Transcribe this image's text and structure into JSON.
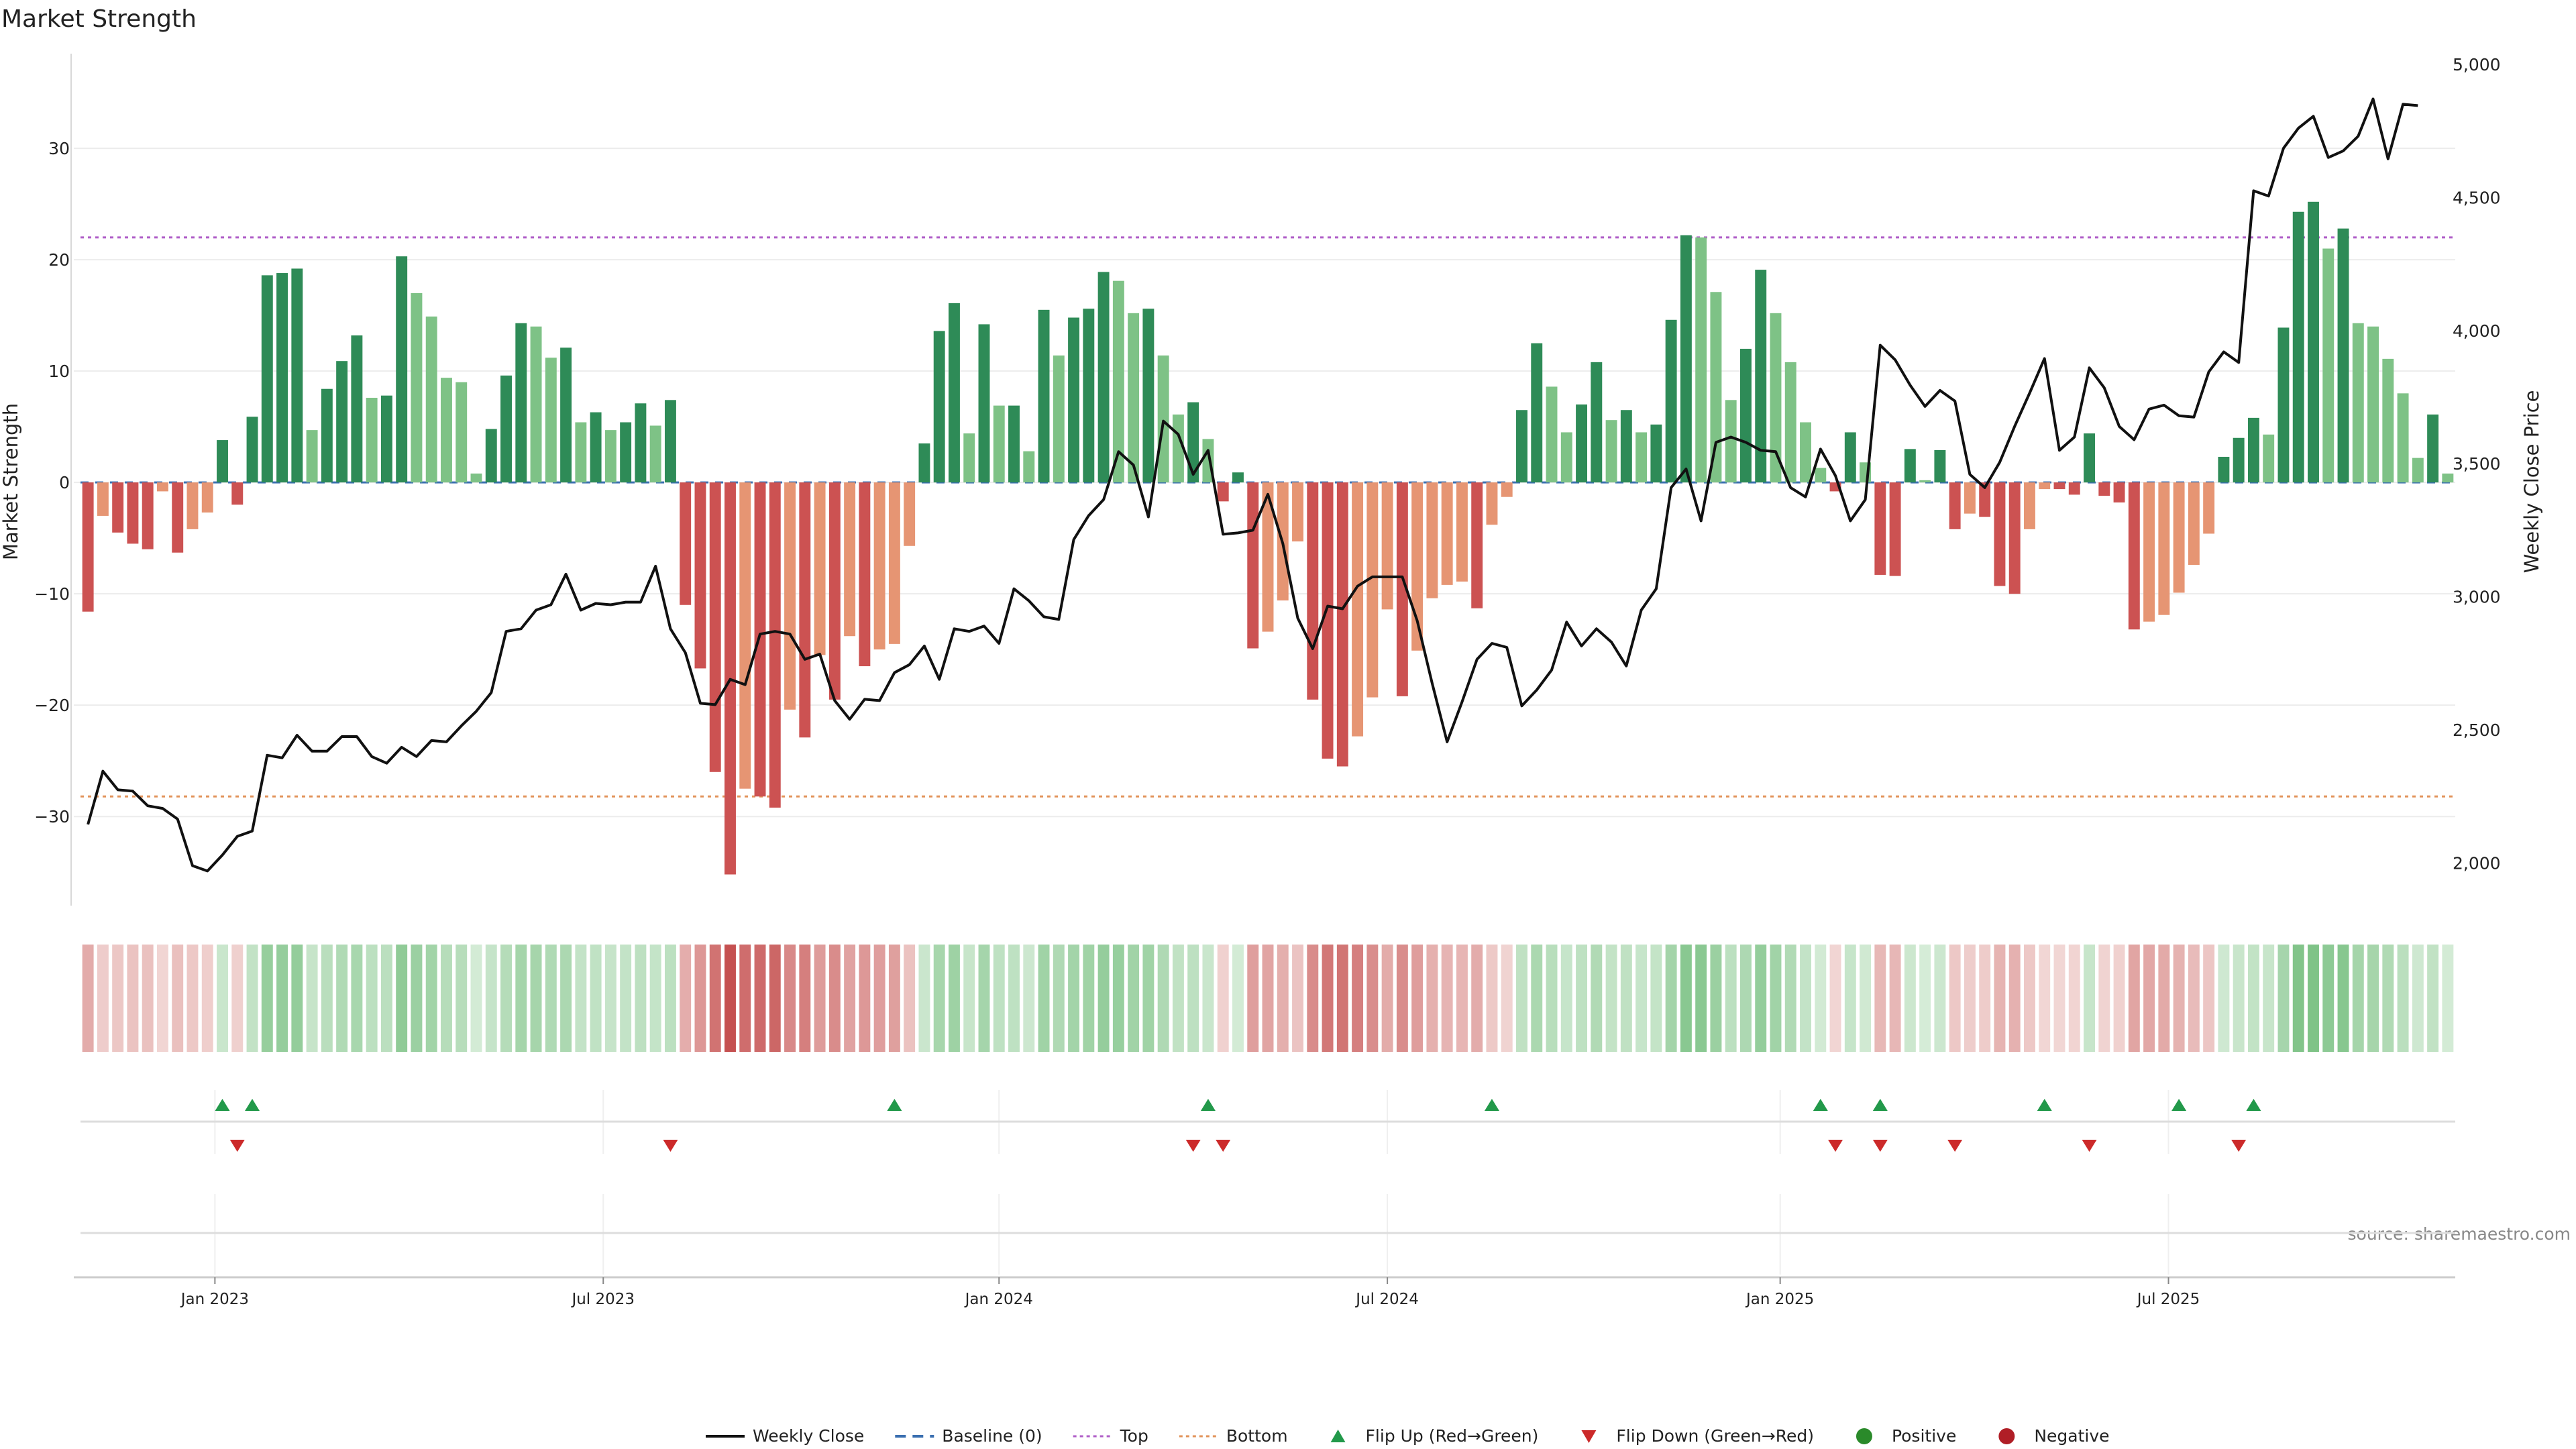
{
  "chart_data": {
    "type": "bar",
    "title": "Market Strength",
    "y_left_label": "Market Strength",
    "y_right_label": "Weekly Close Price",
    "y_left_ticks": [
      "−30",
      "−20",
      "−10",
      "0",
      "10",
      "20",
      "30"
    ],
    "y_left_tick_values": [
      -30,
      -20,
      -10,
      0,
      10,
      20,
      30
    ],
    "y_left_range": [
      -38,
      38.5
    ],
    "y_right_ticks": [
      "2,000",
      "2,500",
      "3,000",
      "3,500",
      "4,000",
      "4,500",
      "5,000"
    ],
    "y_right_tick_values": [
      2000,
      2500,
      3000,
      3500,
      4000,
      4500,
      5000
    ],
    "y_right_range": [
      1840,
      5040
    ],
    "x_ticks": [
      {
        "label": "Jan 2023",
        "week": 9
      },
      {
        "label": "Jul 2023",
        "week": 35
      },
      {
        "label": "Jan 2024",
        "week": 61.5
      },
      {
        "label": "Jul 2024",
        "week": 87.5
      },
      {
        "label": "Jan 2025",
        "week": 113.8
      },
      {
        "label": "Jul 2025",
        "week": 139.8
      }
    ],
    "top_threshold": 22,
    "bottom_threshold": -28.2,
    "grid": true,
    "legend_placement": "bottom-center",
    "weeks": 157,
    "strength": [
      -11.6,
      -3,
      -4.5,
      -5.5,
      -6,
      -0.8,
      -6.3,
      -4.2,
      -2.7,
      3.8,
      -2,
      5.9,
      18.6,
      18.8,
      19.2,
      4.7,
      8.4,
      10.9,
      13.2,
      7.6,
      7.8,
      20.3,
      17,
      14.9,
      9.4,
      9,
      0.8,
      4.8,
      9.6,
      14.3,
      14,
      11.2,
      12.1,
      5.4,
      6.3,
      4.7,
      5.4,
      7.1,
      5.1,
      7.4,
      -11,
      -16.7,
      -26,
      -35.2,
      -27.5,
      -28.2,
      -29.2,
      -20.4,
      -22.9,
      -15.5,
      -19.5,
      -13.8,
      -16.5,
      -15,
      -14.5,
      -5.7,
      3.5,
      13.6,
      16.1,
      4.4,
      14.2,
      6.9,
      6.9,
      2.8,
      15.5,
      11.4,
      14.8,
      15.6,
      18.9,
      18.1,
      15.2,
      15.6,
      11.4,
      6.1,
      7.2,
      3.9,
      -1.7,
      0.9,
      -14.9,
      -13.4,
      -10.6,
      -5.3,
      -19.5,
      -24.8,
      -25.5,
      -22.8,
      -19.3,
      -11.4,
      -19.2,
      -15.1,
      -10.4,
      -9.2,
      -8.9,
      -11.3,
      -3.8,
      -1.3,
      6.5,
      12.5,
      8.6,
      4.5,
      7,
      10.8,
      5.6,
      6.5,
      4.5,
      5.2,
      14.6,
      22.2,
      22,
      17.1,
      7.4,
      12,
      19.1,
      15.2,
      10.8,
      5.4,
      1.3,
      -0.8,
      4.5,
      1.8,
      -8.3,
      -8.4,
      3,
      0.2,
      2.9,
      -4.2,
      -2.8,
      -3.1,
      -9.3,
      -10,
      -4.2,
      -0.6,
      -0.6,
      -1.1,
      4.4,
      -1.2,
      -1.8,
      -13.2,
      -12.5,
      -11.9,
      -9.9,
      -7.4,
      -4.6,
      2.3,
      4,
      5.8,
      4.3,
      13.9,
      24.3,
      25.2,
      21,
      22.8,
      14.3,
      14,
      11.1,
      8,
      2.2,
      6.1,
      0.8
    ],
    "weekly_close": [
      2145,
      2345,
      2275,
      2270,
      2215,
      2205,
      2165,
      1990,
      1970,
      2030,
      2100,
      2120,
      2405,
      2395,
      2480,
      2420,
      2420,
      2475,
      2475,
      2400,
      2375,
      2435,
      2400,
      2460,
      2455,
      2515,
      2570,
      2640,
      2870,
      2880,
      2950,
      2970,
      3085,
      2950,
      2975,
      2970,
      2980,
      2980,
      3115,
      2880,
      2790,
      2600,
      2595,
      2690,
      2670,
      2860,
      2870,
      2860,
      2765,
      2785,
      2610,
      2540,
      2615,
      2610,
      2715,
      2745,
      2815,
      2690,
      2880,
      2870,
      2890,
      2825,
      3030,
      2985,
      2925,
      2915,
      3215,
      3305,
      3365,
      3545,
      3495,
      3300,
      3660,
      3610,
      3460,
      3550,
      3235,
      3240,
      3250,
      3385,
      3200,
      2920,
      2805,
      2965,
      2955,
      3040,
      3075,
      3075,
      3075,
      2910,
      2675,
      2455,
      2605,
      2765,
      2825,
      2810,
      2590,
      2650,
      2725,
      2905,
      2815,
      2880,
      2830,
      2740,
      2950,
      3030,
      3410,
      3480,
      3285,
      3580,
      3600,
      3580,
      3550,
      3545,
      3410,
      3375,
      3555,
      3455,
      3285,
      3365,
      3945,
      3890,
      3795,
      3715,
      3775,
      3735,
      3460,
      3410,
      3505,
      3640,
      3765,
      3895,
      3550,
      3600,
      3860,
      3785,
      3640,
      3590,
      3705,
      3720,
      3680,
      3675,
      3845,
      3920,
      3880,
      4525,
      4505,
      4685,
      4760,
      4805,
      4650,
      4675,
      4730,
      4870,
      4645,
      4850,
      4845
    ],
    "palette": {
      "pos_strong": "#2e8b57",
      "pos_light": "#7ec286",
      "neg_strong": "#cc5252",
      "neg_light": "#e69573",
      "close_line": "#111111",
      "baseline": "#3a6fb0",
      "top_line": "#b05fc8",
      "bottom_line": "#e2935a",
      "flip_up": "#22994a",
      "flip_down": "#cc2a2a",
      "positive_dot": "#2a8a2a",
      "negative_dot": "#b01e26"
    },
    "flip_up_weeks": [
      9,
      11,
      54,
      75,
      94,
      116,
      120,
      131,
      140,
      145
    ],
    "flip_down_weeks": [
      10,
      39,
      74,
      76,
      117,
      120,
      125,
      134,
      144
    ],
    "legend": [
      {
        "label": "Weekly Close",
        "kind": "line"
      },
      {
        "label": "Baseline (0)",
        "kind": "dash"
      },
      {
        "label": "Top",
        "kind": "dot"
      },
      {
        "label": "Bottom",
        "kind": "dot"
      },
      {
        "label": "Flip Up (Red→Green)",
        "kind": "tri-up"
      },
      {
        "label": "Flip Down (Green→Red)",
        "kind": "tri-down"
      },
      {
        "label": "Positive",
        "kind": "dot-marker"
      },
      {
        "label": "Negative",
        "kind": "dot-marker"
      }
    ],
    "source": "source: sharemaestro.com"
  }
}
